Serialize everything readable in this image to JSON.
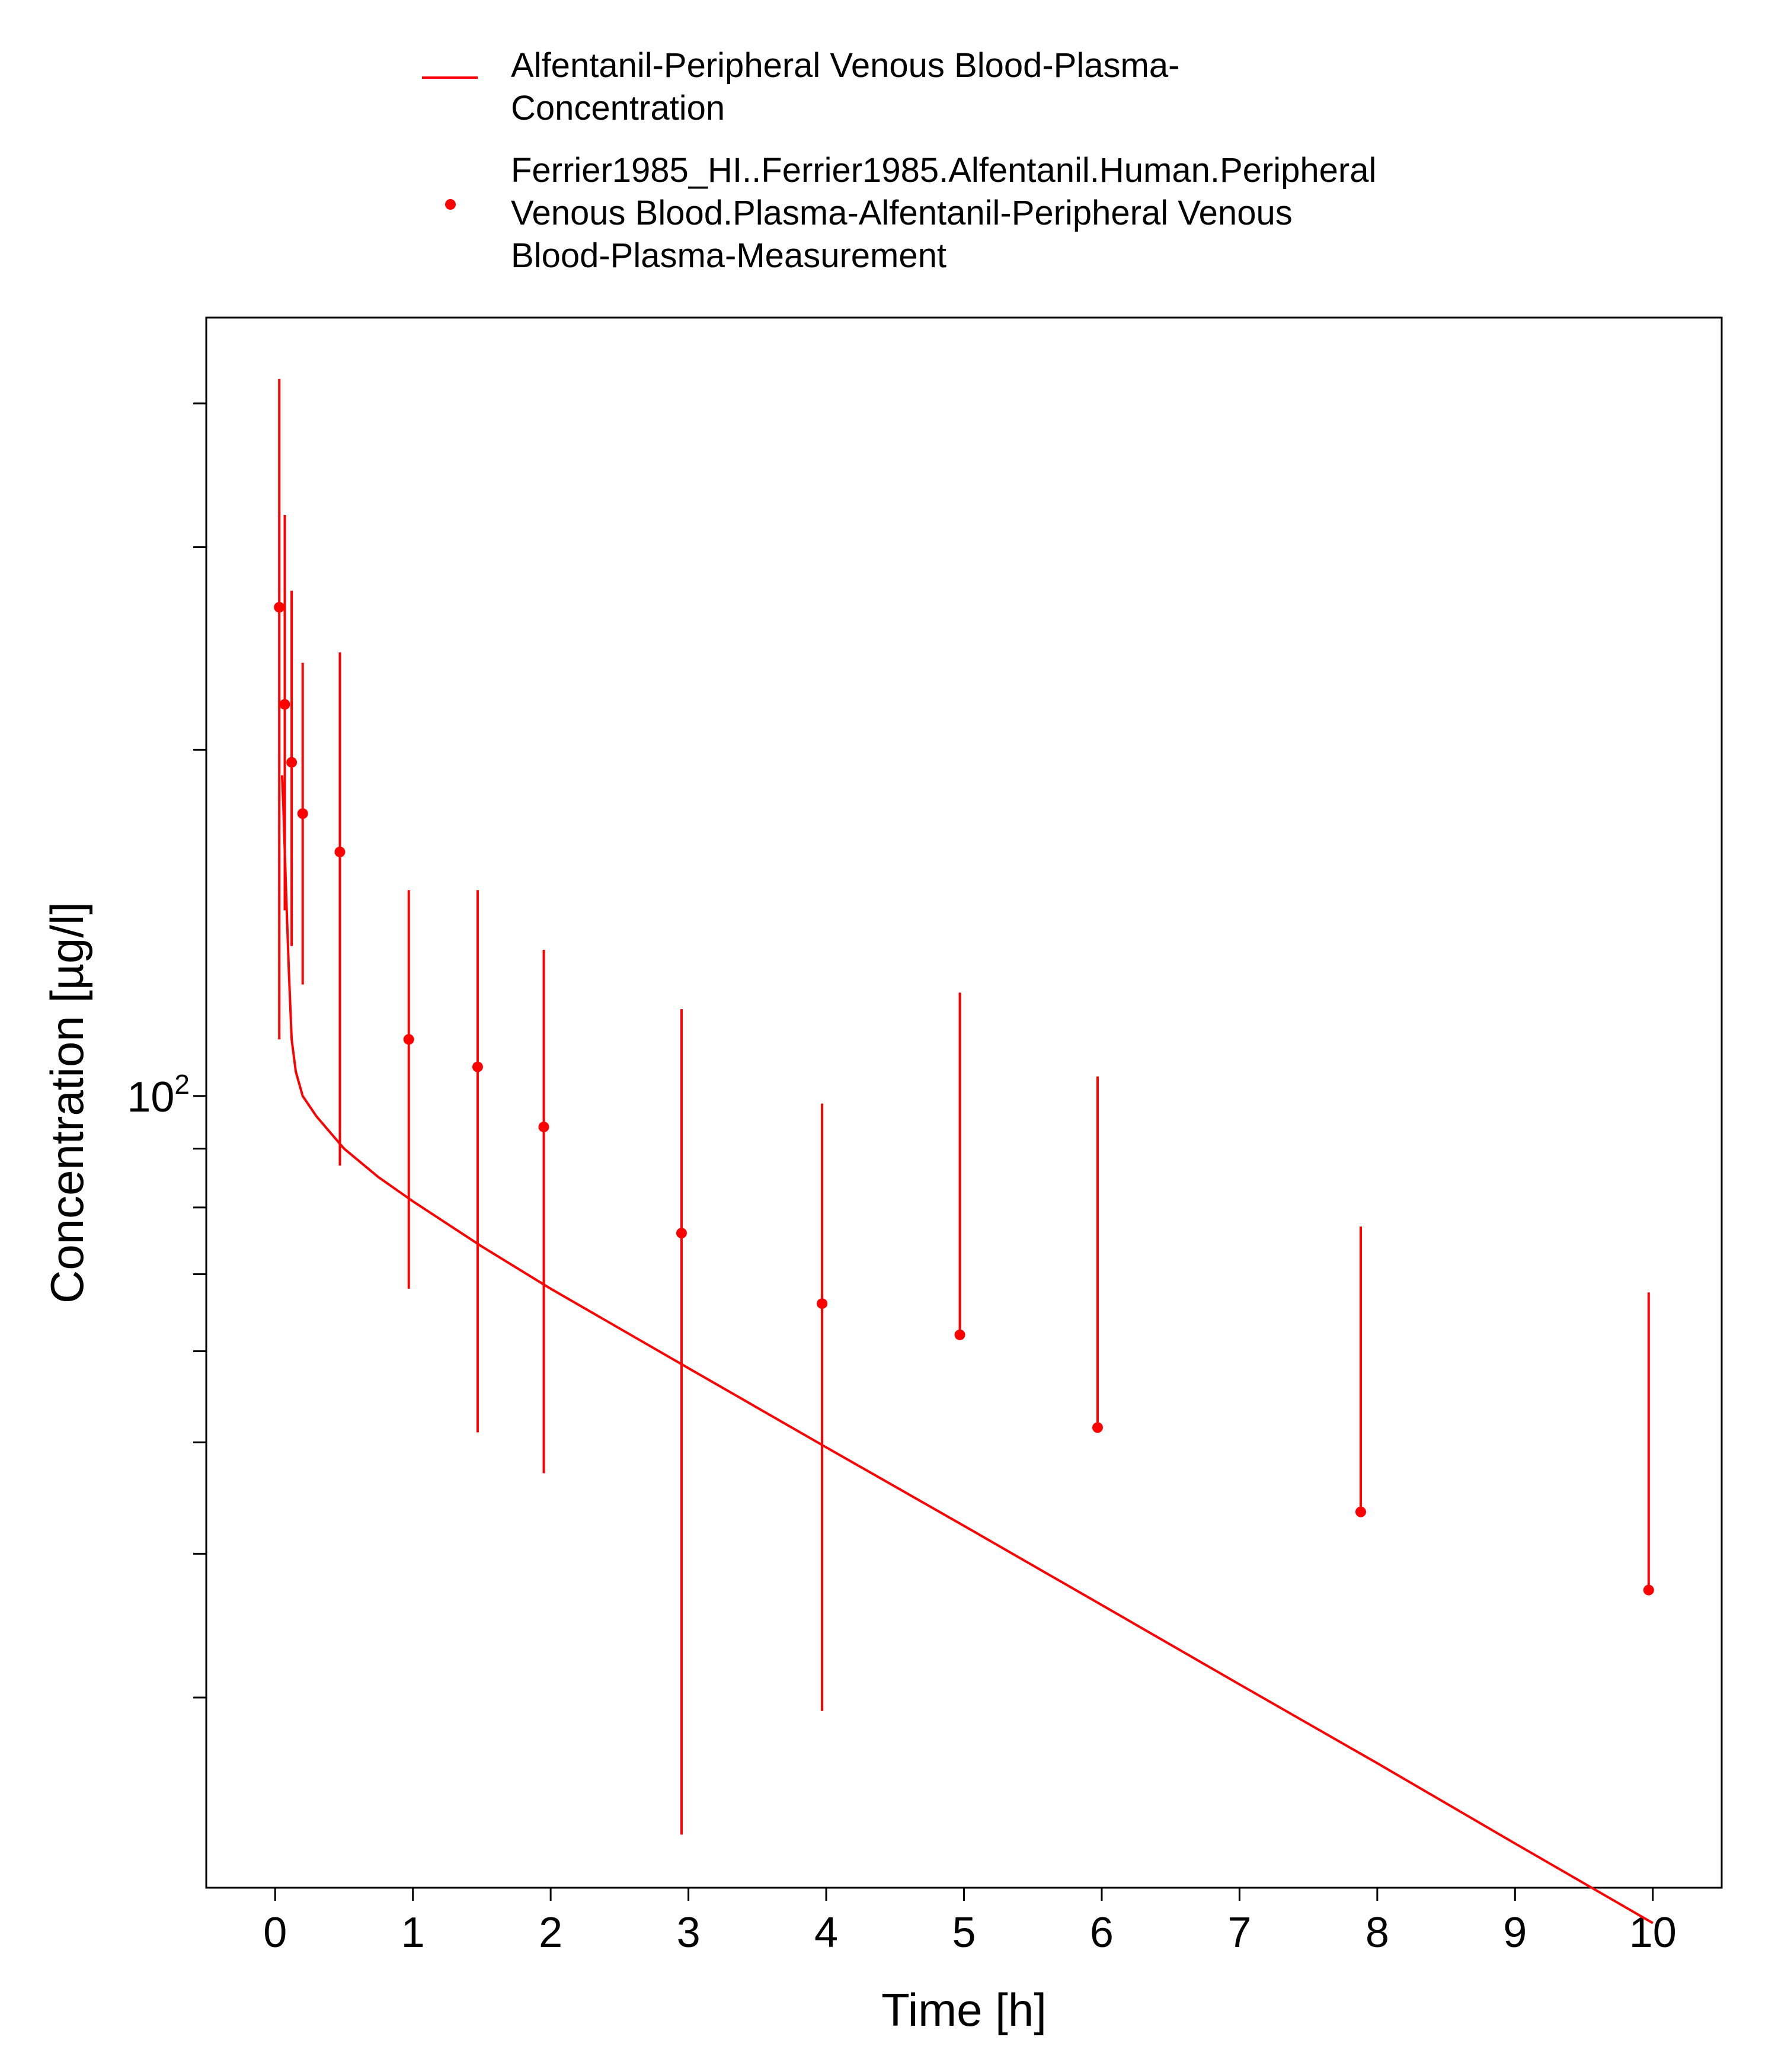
{
  "chart_data": {
    "type": "scatter",
    "xlabel": "Time [h]",
    "ylabel": "Concentration [µg/l]",
    "x_ticks": [
      "0",
      "1",
      "2",
      "3",
      "4",
      "5",
      "6",
      "7",
      "8",
      "9",
      "10"
    ],
    "y_tick_labels": [
      {
        "base": "10",
        "exp": "2"
      }
    ],
    "xlim": [
      -0.5,
      10.5
    ],
    "ylim": [
      20.5,
      475
    ],
    "y_scale": "log",
    "grid": false,
    "legend_position": "top",
    "color": "#ff0000",
    "series": [
      {
        "name": "Alfentanil-Peripheral Venous Blood-Plasma-Concentration",
        "legend_lines": [
          "Alfentanil-Peripheral Venous Blood-Plasma-",
          "Concentration"
        ],
        "kind": "line",
        "x": [
          0.05,
          0.06,
          0.08,
          0.1,
          0.12,
          0.15,
          0.2,
          0.3,
          0.5,
          0.75,
          1.0,
          1.5,
          2.0,
          3.0,
          4.0,
          5.0,
          6.0,
          7.0,
          8.0,
          9.0,
          10.0
        ],
        "y": [
          190,
          178,
          150,
          128,
          112,
          105,
          100,
          96,
          90,
          85,
          81,
          74,
          68,
          58,
          49.5,
          42.3,
          36.1,
          30.8,
          26.3,
          22.4,
          19.1
        ]
      },
      {
        "name": "Ferrier1985_HI..Ferrier1985.Alfentanil.Human.Peripheral Venous Blood.Plasma-Alfentanil-Peripheral Venous Blood-Plasma-Measurement",
        "legend_lines": [
          "Ferrier1985_HI..Ferrier1985.Alfentanil.Human.Peripheral",
          "Venous Blood.Plasma-Alfentanil-Peripheral Venous",
          "Blood-Plasma-Measurement"
        ],
        "kind": "scatter_errorbar",
        "x": [
          0.03,
          0.07,
          0.12,
          0.2,
          0.47,
          0.97,
          1.47,
          1.95,
          2.95,
          3.97,
          4.97,
          5.97,
          7.88,
          9.97
        ],
        "y": [
          266,
          219,
          195,
          176,
          163,
          112,
          106,
          94,
          76,
          66,
          62,
          51.5,
          43.5,
          37.2
        ],
        "y_low": [
          112,
          145,
          135,
          125,
          87,
          68,
          51,
          47,
          22.8,
          29.2,
          62,
          51.5,
          43.5,
          37.2
        ],
        "y_high": [
          420,
          320,
          275,
          238,
          243,
          151,
          151,
          134,
          119,
          98.5,
          123,
          104,
          77,
          67.5
        ]
      }
    ]
  }
}
